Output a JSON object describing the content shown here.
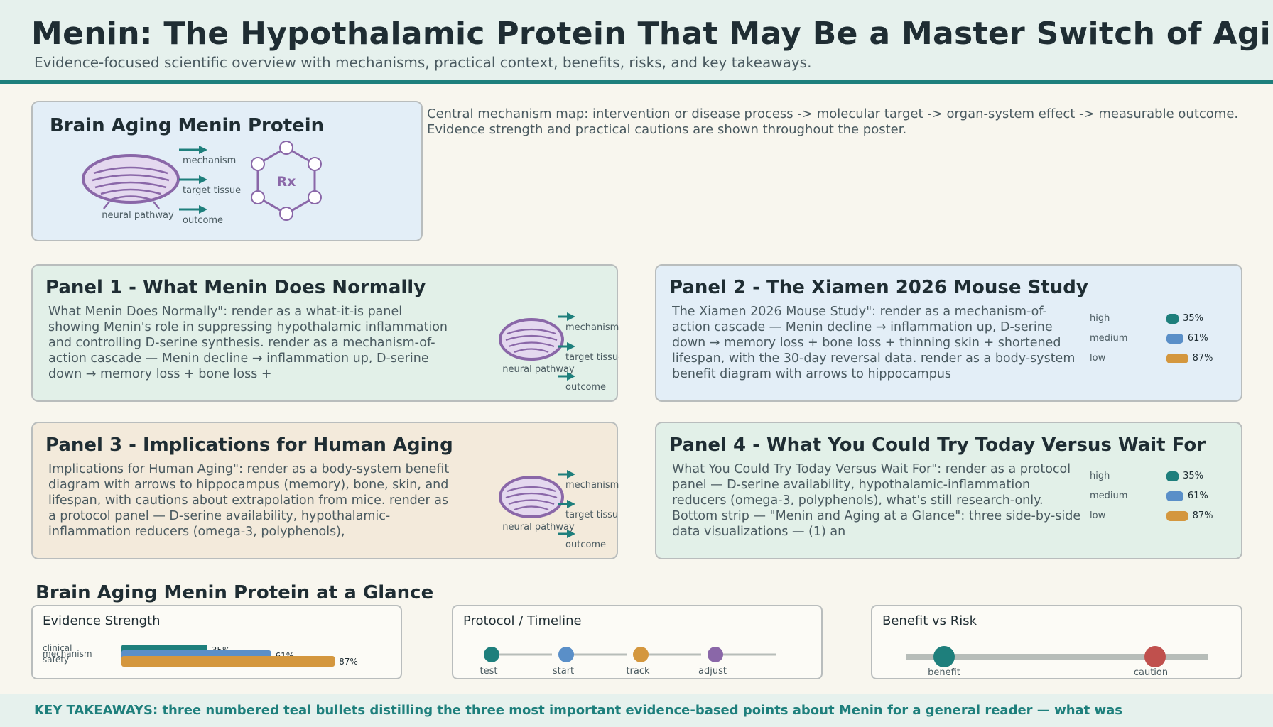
{
  "header": {
    "title": "Menin: The Hypothalamic Protein That May Be a Master Switch of Aging",
    "subtitle": "Evidence-focused scientific overview with mechanisms, practical context, benefits, risks, and key takeaways."
  },
  "hero": {
    "title": "Brain Aging Menin Protein",
    "brain_label": "neural pathway",
    "arrow_labels": [
      "mechanism",
      "target tissue",
      "outcome"
    ],
    "molecule_label": "Rx"
  },
  "intro": "Central mechanism map: intervention or disease process -> molecular target -> organ-system effect -> measurable outcome. Evidence strength and practical cautions are shown throughout the poster.",
  "panels": [
    {
      "title": "Panel 1 - What Menin Does Normally",
      "body": "What Menin Does Normally\": render as a what-it-is panel showing Menin's role in suppressing hypothalamic inflammation and controlling D-serine synthesis. render as a mechanism-of-action cascade — Menin decline → inflammation up, D-serine down → memory loss + bone loss +",
      "illustration": {
        "brain_label": "neural pathway",
        "arrow_labels": [
          "mechanism",
          "target tissue",
          "outcome"
        ]
      }
    },
    {
      "title": "Panel 2 - The Xiamen 2026 Mouse Study",
      "body": "The Xiamen 2026 Mouse Study\": render as a mechanism-of-action cascade — Menin decline → inflammation up, D-serine down → memory loss + bone loss + thinning skin + shortened lifespan, with the 30-day reversal data. render as a body-system benefit diagram with arrows to hippocampus",
      "legend": [
        {
          "label": "high",
          "value": "35%",
          "fraction": 0.35,
          "color": "#1e7f7c"
        },
        {
          "label": "medium",
          "value": "61%",
          "fraction": 0.61,
          "color": "#5a8fc8"
        },
        {
          "label": "low",
          "value": "87%",
          "fraction": 0.87,
          "color": "#d4973e"
        }
      ]
    },
    {
      "title": "Panel 3 - Implications for Human Aging",
      "body": "Implications for Human Aging\": render as a body-system benefit diagram with arrows to hippocampus (memory), bone, skin, and lifespan, with cautions about extrapolation from mice. render as a protocol panel — D-serine availability, hypothalamic-inflammation reducers (omega-3, polyphenols),",
      "illustration": {
        "brain_label": "neural pathway",
        "arrow_labels": [
          "mechanism",
          "target tissue",
          "outcome"
        ]
      }
    },
    {
      "title": "Panel 4 - What You Could Try Today Versus Wait For",
      "body": "What You Could Try Today Versus Wait For\": render as a protocol panel — D-serine availability, hypothalamic-inflammation reducers (omega-3, polyphenols), what's still research-only. Bottom strip — \"Menin and Aging at a Glance\": three side-by-side data visualizations — (1) an",
      "legend": [
        {
          "label": "high",
          "value": "35%",
          "fraction": 0.35,
          "color": "#1e7f7c"
        },
        {
          "label": "medium",
          "value": "61%",
          "fraction": 0.61,
          "color": "#5a8fc8"
        },
        {
          "label": "low",
          "value": "87%",
          "fraction": 0.87,
          "color": "#d4973e"
        }
      ]
    }
  ],
  "glance": {
    "title": "Brain Aging Menin Protein at a Glance",
    "evidence": {
      "title": "Evidence Strength",
      "bars": [
        {
          "label": "clinical",
          "value": "35%",
          "fraction": 0.35,
          "color": "#1e7f7c"
        },
        {
          "label": "mechanism",
          "value": "61%",
          "fraction": 0.61,
          "color": "#5a8fc8"
        },
        {
          "label": "safety",
          "value": "87%",
          "fraction": 0.87,
          "color": "#d4973e"
        }
      ]
    },
    "timeline": {
      "title": "Protocol / Timeline",
      "steps": [
        {
          "label": "test",
          "color": "#1e7f7c"
        },
        {
          "label": "start",
          "color": "#5a8fc8"
        },
        {
          "label": "track",
          "color": "#d4973e"
        },
        {
          "label": "adjust",
          "color": "#8a67a8"
        }
      ]
    },
    "benefit_risk": {
      "title": "Benefit vs Risk",
      "benefit_label": "benefit",
      "caution_label": "caution",
      "benefit_color": "#1e7f7c",
      "caution_color": "#c0504d"
    }
  },
  "footer": {
    "text": "KEY TAKEAWAYS: three numbered teal bullets distilling the three most important evidence-based points about Menin for a general reader — what was"
  },
  "colors": {
    "teal": "#1e7f7c",
    "purple": "#8a67a8",
    "brain_fill": "#e4d8ef"
  }
}
